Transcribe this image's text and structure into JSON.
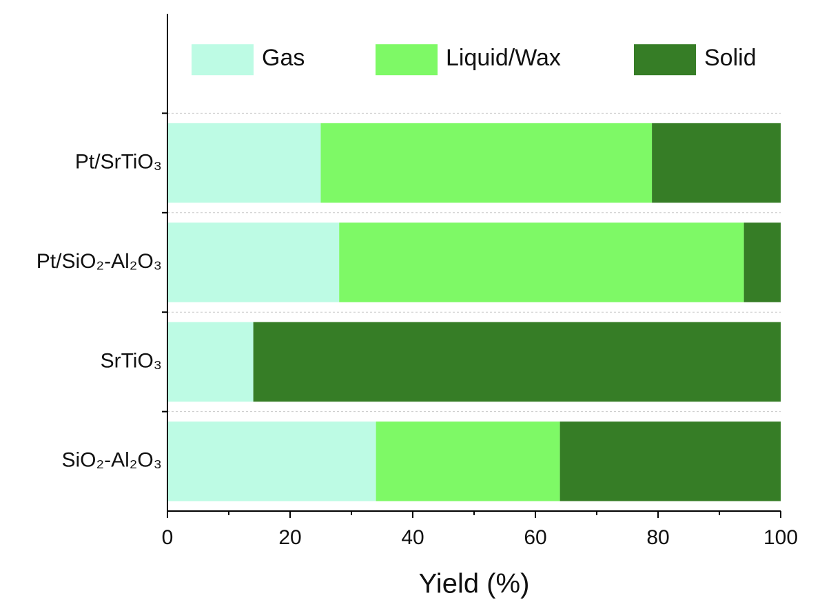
{
  "chart_data": {
    "type": "stacked_barh",
    "categories": [
      "Pt/SrTiO₃",
      "Pt/SiO₂-Al₂O₃",
      "SrTiO₃",
      "SiO₂-Al₂O₃"
    ],
    "series": [
      {
        "name": "Gas",
        "color": "#bdfbe4",
        "values": [
          25,
          28,
          14,
          34
        ]
      },
      {
        "name": "Liquid/Wax",
        "color": "#7ef966",
        "values": [
          54,
          66,
          0,
          30
        ]
      },
      {
        "name": "Solid",
        "color": "#367d26",
        "values": [
          21,
          6,
          86,
          36
        ]
      }
    ],
    "xlabel": "Yield (%)",
    "xlim": [
      0,
      100
    ],
    "xticks": [
      0,
      20,
      40,
      60,
      80,
      100
    ],
    "xminor_ticks": [
      10,
      30,
      50,
      70,
      90
    ],
    "legend": "top"
  }
}
